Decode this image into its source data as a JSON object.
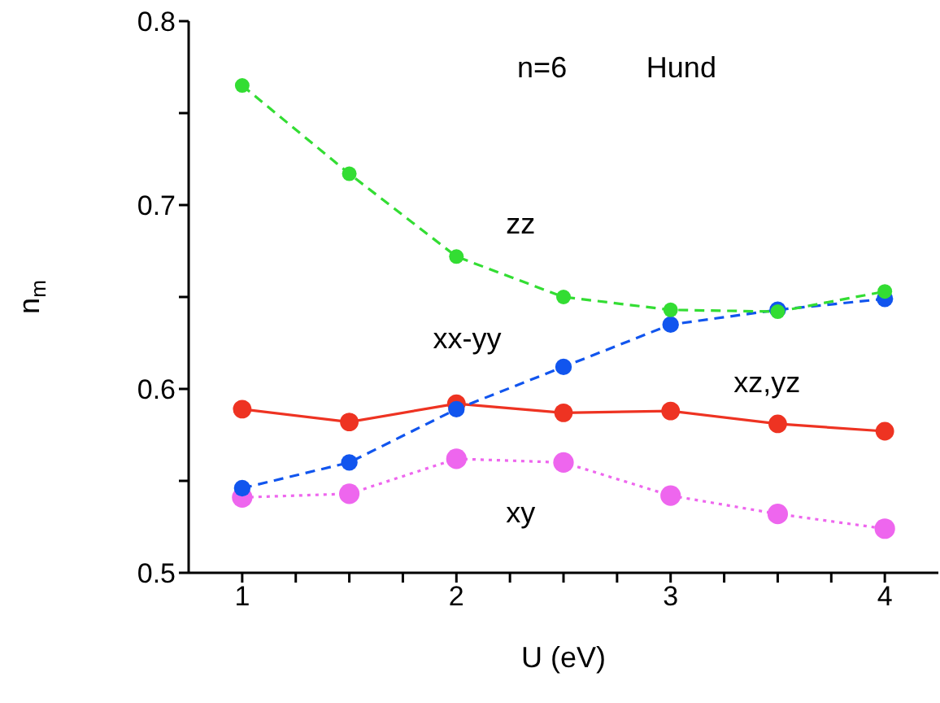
{
  "chart_data": {
    "type": "line",
    "xlabel": "U  (eV)",
    "ylabel": "n$_{m}$",
    "annotations": [
      "n=6",
      "Hund"
    ],
    "xlim": [
      0.75,
      4.25
    ],
    "xticks": [
      1,
      {
        "value": 1.25,
        "label": null
      },
      {
        "value": 1.5,
        "label": null
      },
      {
        "value": 1.75,
        "label": null
      },
      2,
      {
        "value": 2.25,
        "label": null
      },
      {
        "value": 2.5,
        "label": null
      },
      {
        "value": 2.75,
        "label": null
      },
      3,
      {
        "value": 3.25,
        "label": null
      },
      {
        "value": 3.5,
        "label": null
      },
      {
        "value": 3.75,
        "label": null
      },
      4
    ],
    "ylim": [
      0.5,
      0.8
    ],
    "yticks": [
      {
        "value": 0.5,
        "label": "0.5"
      },
      {
        "value": 0.55,
        "label": null
      },
      {
        "value": 0.6,
        "label": "0.6"
      },
      {
        "value": 0.65,
        "label": null
      },
      {
        "value": 0.7,
        "label": "0.7"
      },
      {
        "value": 0.75,
        "label": null
      },
      {
        "value": 0.8,
        "label": "0.8"
      }
    ],
    "x": [
      1,
      1.5,
      2,
      2.5,
      3,
      3.5,
      4
    ],
    "marker": "circle",
    "grid": false,
    "legend": false,
    "series": [
      {
        "name": "zz",
        "color": "#33dd33",
        "line_style": "dashed",
        "values": [
          0.765,
          0.717,
          0.672,
          0.65,
          0.643,
          0.642,
          0.653
        ]
      },
      {
        "name": "xx-yy",
        "color": "#1155ee",
        "line_style": "dashed",
        "values": [
          0.546,
          0.56,
          0.589,
          0.612,
          0.635,
          0.643,
          0.649
        ]
      },
      {
        "name": "xz,yz",
        "color": "#ee3322",
        "line_style": "solid",
        "values": [
          0.589,
          0.582,
          0.592,
          0.587,
          0.588,
          0.581,
          0.577
        ]
      },
      {
        "name": "xy",
        "color": "#ee66ee",
        "line_style": "dotted",
        "values": [
          0.541,
          0.543,
          0.562,
          0.56,
          0.542,
          0.532,
          0.524
        ]
      }
    ]
  }
}
